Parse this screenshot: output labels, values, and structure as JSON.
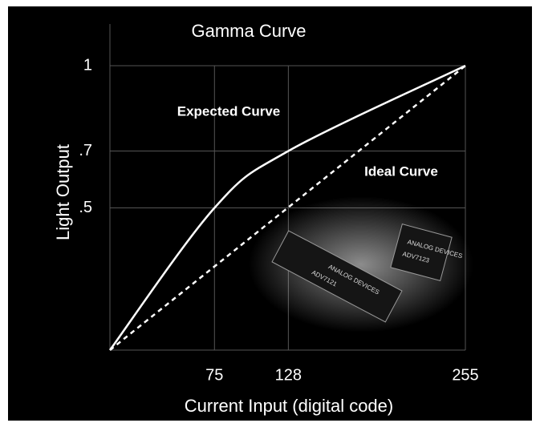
{
  "chart_data": {
    "type": "line",
    "title": "Gamma Curve",
    "x_label": "Current Input (digital code)",
    "y_label": "Light Output",
    "xlim": [
      0,
      255
    ],
    "ylim": [
      0,
      1
    ],
    "xticks": [
      75,
      128,
      255
    ],
    "yticks": [
      {
        "value": 0.5,
        "label": ".5"
      },
      {
        "value": 0.7,
        "label": ".7"
      },
      1
    ],
    "grid": true,
    "series": [
      {
        "name": "Expected Curve",
        "color": "#ffffff",
        "dash": false,
        "x": [
          0,
          75,
          128,
          255
        ],
        "values": [
          0,
          0.5,
          0.7,
          1
        ]
      },
      {
        "name": "Ideal Curve",
        "color": "#ffffff",
        "dash": true,
        "x": [
          0,
          255
        ],
        "values": [
          0,
          1
        ]
      }
    ],
    "annotations": [
      "ANALOG DEVICES",
      "ADV7121",
      "ANALOG DEVICES",
      "ADV7123"
    ]
  }
}
